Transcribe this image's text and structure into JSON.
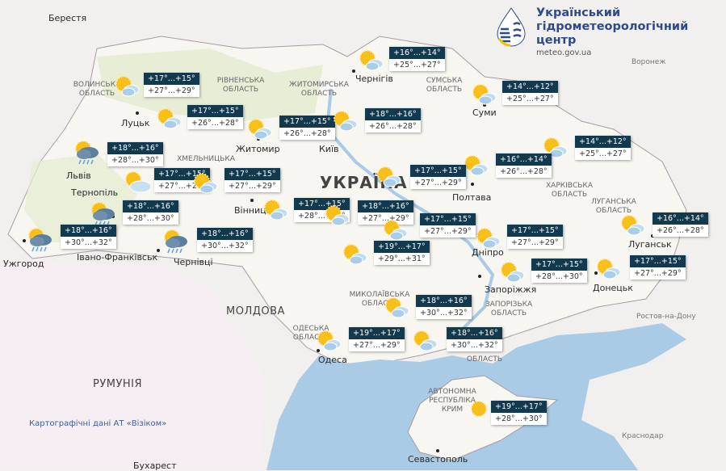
{
  "header": {
    "org_name_lines": [
      "Український",
      "гідрометеорологічний",
      "центр"
    ],
    "url": "meteo.gov.ua"
  },
  "map": {
    "country_title": "УКРАЇНА",
    "attribution": "Картографічні дані АТ «Візіком»",
    "colors": {
      "land": "#f2f0ee",
      "ukraine_land": "#f7f6f2",
      "forest": "#dfe9c8",
      "sea": "#a9cbe6",
      "label_bg": "#13394f"
    },
    "cities": [
      "Берестя",
      "Воронеж",
      "Чернігів",
      "Луцьк",
      "Київ",
      "Житомир",
      "Суми",
      "Львів",
      "Тернопіль",
      "Полтава",
      "Вінниця",
      "Івано-Франківськ",
      "Чернівці",
      "Дніпро",
      "Луганськ",
      "Запоріжжя",
      "Донецьк",
      "Одеса",
      "Ужгород",
      "Ростов-на-Дону",
      "Краснодар",
      "Севастополь",
      "Бухарест"
    ],
    "countries": [
      "МОЛДОВА",
      "РУМУНІЯ"
    ],
    "regions": [
      "ВОЛИНСЬКА ОБЛАСТЬ",
      "РІВНЕНСЬКА ОБЛАСТЬ",
      "ЖИТОМИРСЬКА ОБЛАСТЬ",
      "СУМСЬКА ОБЛАСТЬ",
      "ХАРКІВСЬКА ОБЛАСТЬ",
      "ЛУГАНСЬКА ОБЛАСТЬ",
      "МИКОЛАЇВСЬКА ОБЛАСТЬ",
      "ОДЕСЬКА ОБЛАСТЬ",
      "ЗАПОРІЗЬКА ОБЛАСТЬ",
      "ОБЛАСТЬ",
      "АВТОНОМНА РЕСПУБЛІКА КРИМ",
      "ХМЕЛЬНИЦЬКА"
    ]
  },
  "forecasts": [
    {
      "night": "+17°...+15°",
      "day": "+27°...+29°",
      "icon": "sun-cloud-icon"
    },
    {
      "night": "+17°...+15°",
      "day": "+26°...+28°",
      "icon": "sun-cloud-icon"
    },
    {
      "night": "+17°...+15°",
      "day": "+26°...+28°",
      "icon": "sun-cloud-icon"
    },
    {
      "night": "+18°...+16°",
      "day": "+26°...+28°",
      "icon": "sun-cloud-icon"
    },
    {
      "night": "+16°...+14°",
      "day": "+25°...+27°",
      "icon": "sun-cloud-icon"
    },
    {
      "night": "+14°...+12°",
      "day": "+25°...+27°",
      "icon": "sun-cloud-icon"
    },
    {
      "night": "+14°...+12°",
      "day": "+25°...+27°",
      "icon": "sun-cloud-icon"
    },
    {
      "night": "+16°...+14°",
      "day": "+26°...+28°",
      "icon": "sun-cloud-icon"
    },
    {
      "night": "+17°...+15°",
      "day": "+27°...+29°",
      "icon": "sun-cloud-icon"
    },
    {
      "night": "+18°...+16°",
      "day": "+28°...+30°",
      "icon": "rain-icon"
    },
    {
      "night": "+17°...+15°",
      "day": "+27°...+29°",
      "icon": "cloud-sun-icon"
    },
    {
      "night": "+17°...+15°",
      "day": "+27°...+29°",
      "icon": "sun-cloud-icon"
    },
    {
      "night": "+18°...+16°",
      "day": "+28°...+30°",
      "icon": "rain-icon"
    },
    {
      "night": "+18°...+16°",
      "day": "+30°...+32°",
      "icon": "rain-icon"
    },
    {
      "night": "+18°...+16°",
      "day": "+30°...+32°",
      "icon": "rain-icon"
    },
    {
      "night": "+17°...+15°",
      "day": "+28°...+30°",
      "icon": "sun-cloud-icon"
    },
    {
      "night": "+18°...+16°",
      "day": "+27°...+29°",
      "icon": "sun-cloud-icon"
    },
    {
      "night": "+17°...+15°",
      "day": "+27°...+29°",
      "icon": "sun-cloud-icon"
    },
    {
      "night": "+19°...+17°",
      "day": "+29°...+31°",
      "icon": "sun-cloud-icon"
    },
    {
      "night": "+17°...+15°",
      "day": "+27°...+29°",
      "icon": "sun-cloud-icon"
    },
    {
      "night": "+16°...+14°",
      "day": "+26°...+28°",
      "icon": "sun-cloud-icon"
    },
    {
      "night": "+17°...+15°",
      "day": "+28°...+30°",
      "icon": "sun-cloud-icon"
    },
    {
      "night": "+17°...+15°",
      "day": "+27°...+29°",
      "icon": "sun-cloud-icon"
    },
    {
      "night": "+18°...+16°",
      "day": "+30°...+32°",
      "icon": "sun-cloud-icon"
    },
    {
      "night": "+19°...+17°",
      "day": "+27°...+29°",
      "icon": "sun-cloud-icon"
    },
    {
      "night": "+18°...+16°",
      "day": "+30°...+32°",
      "icon": "sun-cloud-icon"
    },
    {
      "night": "+19°...+17°",
      "day": "+28°...+30°",
      "icon": "sun-icon"
    }
  ]
}
